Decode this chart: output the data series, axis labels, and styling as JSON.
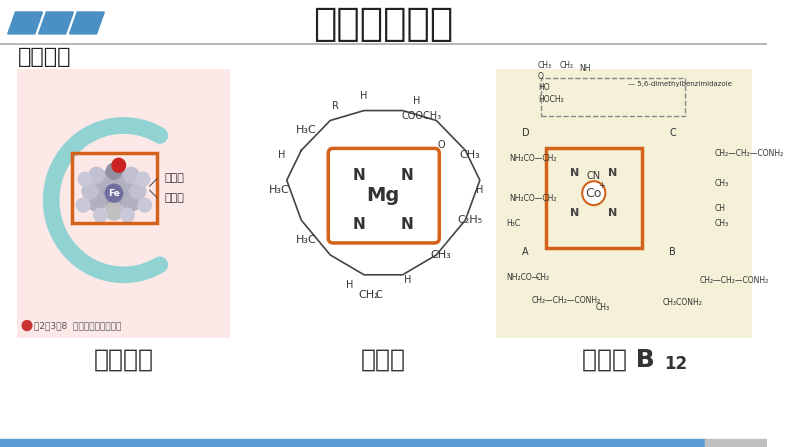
{
  "title": "配合物的应用",
  "subtitle": "生命体中",
  "labels": [
    "血红蛋白",
    "叶绿素",
    "维生素 B"
  ],
  "b12_subscript": "12",
  "bg_color": "#ffffff",
  "title_color": "#222222",
  "header_bar_color": "#5b9bd5",
  "header_bar_color2": "#a0a0a0",
  "separator_color": "#aaaaaa",
  "bottom_bar_color": "#5b9bd5",
  "bottom_bar_color2": "#c0c0c0",
  "parallelogram_colors": [
    "#4a90c4",
    "#4a90c4",
    "#4a90c4"
  ],
  "image1_bg": "#fde8e8",
  "image3_bg": "#f5f0d8",
  "label_fontsize": 18,
  "title_fontsize": 28
}
